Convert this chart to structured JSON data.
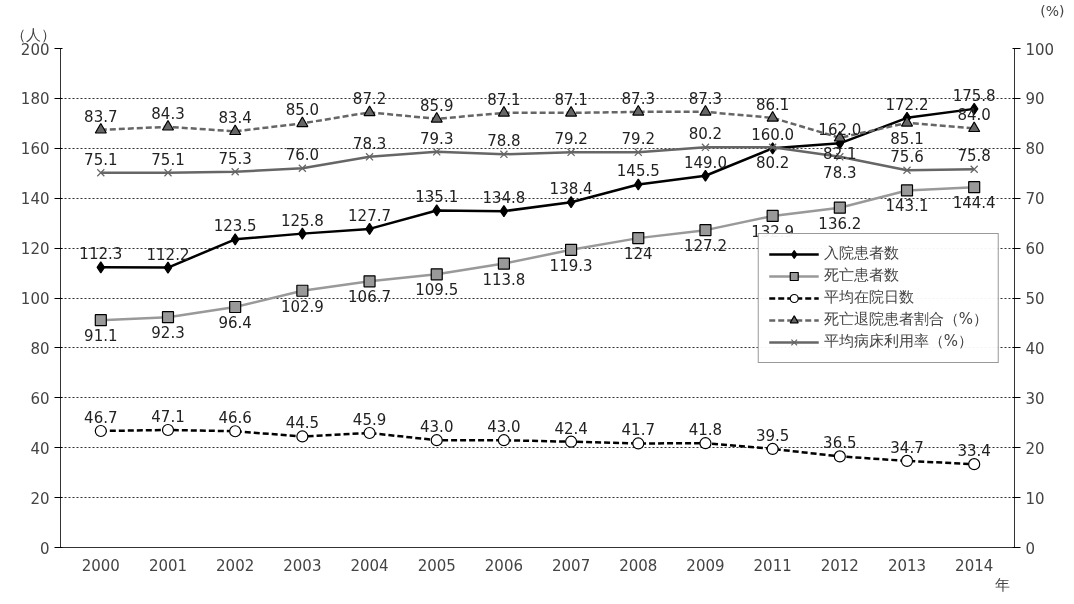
{
  "chart_data": {
    "type": "line",
    "ylabel": "（人）",
    "y2label": "(%)",
    "xlabel": "年",
    "categories": [
      "2000",
      "2001",
      "2002",
      "2003",
      "2004",
      "2005",
      "2006",
      "2007",
      "2008",
      "2009",
      "2011",
      "2012",
      "2013",
      "2014"
    ],
    "series": [
      {
        "name": "入院患者数",
        "color": "#000000",
        "marker": "diamond",
        "line_style": "solid",
        "values": [
          112.3,
          112.2,
          123.5,
          125.8,
          127.7,
          135.1,
          134.8,
          138.4,
          145.5,
          149.0,
          160.0,
          162.0,
          172.2,
          175.8
        ],
        "value_labels": [
          "112.3",
          "112.2",
          "123.5",
          "125.8",
          "127.7",
          "135.1",
          "134.8",
          "138.4",
          "145.5",
          "149.0",
          "160.0",
          "162.0",
          "172.2",
          "175.8"
        ]
      },
      {
        "name": "死亡患者数",
        "color": "#999999",
        "marker": "square",
        "line_style": "solid",
        "values": [
          91.1,
          92.3,
          96.4,
          102.9,
          106.7,
          109.5,
          113.8,
          119.3,
          124,
          127.2,
          132.9,
          136.2,
          143.1,
          144.4
        ],
        "value_labels": [
          "91.1",
          "92.3",
          "96.4",
          "102.9",
          "106.7",
          "109.5",
          "113.8",
          "119.3",
          "124",
          "127.2",
          "132.9",
          "136.2",
          "143.1",
          "144.4"
        ]
      },
      {
        "name": "平均在院日数",
        "color": "#000000",
        "marker": "circle",
        "line_style": "dashed",
        "values": [
          46.7,
          47.1,
          46.6,
          44.5,
          45.9,
          43.0,
          43.0,
          42.4,
          41.7,
          41.8,
          39.5,
          36.5,
          34.7,
          33.4
        ],
        "value_labels": [
          "46.7",
          "47.1",
          "46.6",
          "44.5",
          "45.9",
          "43.0",
          "43.0",
          "42.4",
          "41.7",
          "41.8",
          "39.5",
          "36.5",
          "34.7",
          "33.4"
        ]
      },
      {
        "name": "死亡退院患者割合（%）",
        "color": "#666666",
        "marker": "triangle",
        "line_style": "dashed",
        "axis": "y2",
        "values": [
          83.7,
          84.3,
          83.4,
          85.0,
          87.2,
          85.9,
          87.1,
          87.1,
          87.3,
          87.3,
          86.1,
          82.1,
          85.1,
          84.0
        ],
        "value_labels": [
          "83.7",
          "84.3",
          "83.4",
          "85.0",
          "87.2",
          "85.9",
          "87.1",
          "87.1",
          "87.3",
          "87.3",
          "86.1",
          "82.1",
          "85.1",
          "84.0"
        ]
      },
      {
        "name": "平均病床利用率（%）",
        "color": "#666666",
        "marker": "cross",
        "line_style": "solid",
        "axis": "y2",
        "values": [
          75.1,
          75.1,
          75.3,
          76.0,
          78.3,
          79.3,
          78.8,
          79.2,
          79.2,
          80.2,
          80.2,
          78.3,
          75.6,
          75.8
        ],
        "value_labels": [
          "75.1",
          "75.1",
          "75.3",
          "76.0",
          "78.3",
          "79.3",
          "78.8",
          "79.2",
          "79.2",
          "80.2",
          "80.2",
          "78.3",
          "75.6",
          "75.8"
        ]
      }
    ],
    "ylim": [
      0,
      200
    ],
    "yticks": [
      0,
      20,
      40,
      60,
      80,
      100,
      120,
      140,
      160,
      180,
      200
    ],
    "y2lim": [
      0,
      100
    ],
    "y2ticks": [
      0,
      10,
      20,
      30,
      40,
      50,
      60,
      70,
      80,
      90,
      100
    ],
    "grid": "y",
    "legend": "right",
    "data_labels": true
  }
}
